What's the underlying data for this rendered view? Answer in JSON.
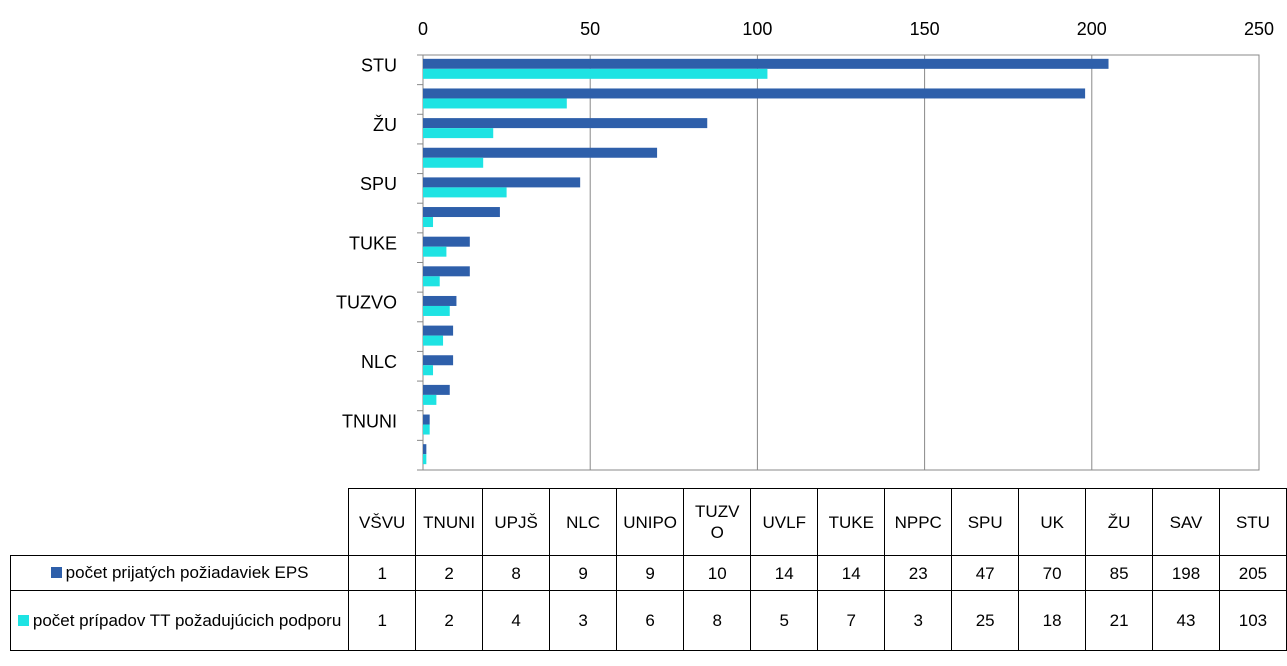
{
  "chart_data": {
    "type": "bar",
    "orientation": "horizontal",
    "categories": [
      "VŠVU",
      "TNUNI",
      "UPJŠ",
      "NLC",
      "UNIPO",
      "TUZVO",
      "UVLF",
      "TUKE",
      "NPPC",
      "SPU",
      "UK",
      "ŽU",
      "SAV",
      "STU"
    ],
    "series": [
      {
        "name": "počet prijatých požiadaviek EPS",
        "color": "#2e5faa",
        "values": [
          1,
          2,
          8,
          9,
          9,
          10,
          14,
          14,
          23,
          47,
          70,
          85,
          198,
          205
        ]
      },
      {
        "name": "počet prípadov TT požadujúcich podporu",
        "color": "#1ee3e3",
        "values": [
          1,
          2,
          4,
          3,
          6,
          8,
          5,
          7,
          3,
          25,
          18,
          21,
          43,
          103
        ]
      }
    ],
    "xlim": [
      0,
      250
    ],
    "xticks": [
      0,
      50,
      100,
      150,
      200,
      250
    ],
    "grid": true,
    "data_table": true
  }
}
